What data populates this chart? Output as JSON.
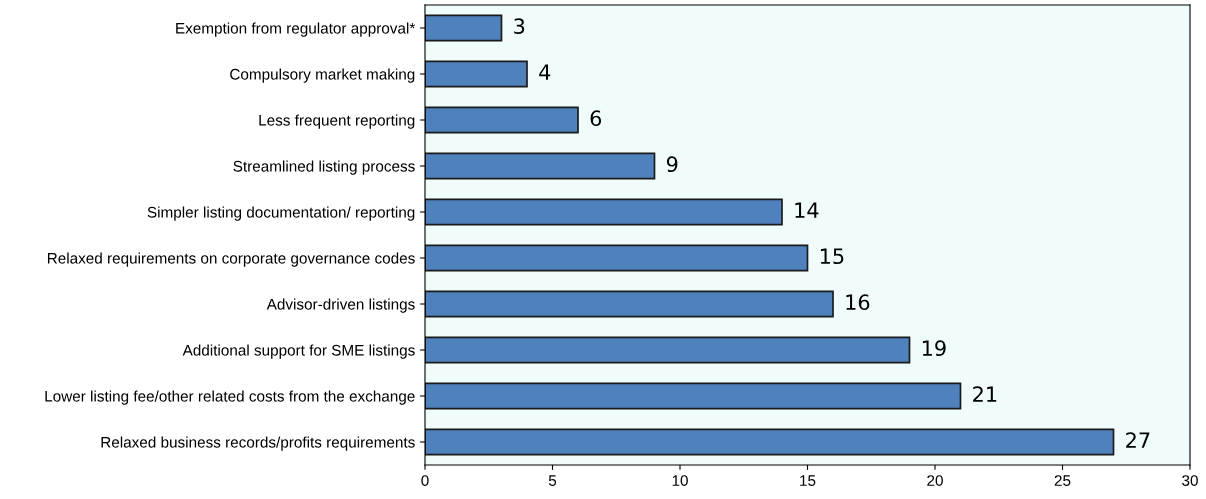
{
  "chart_data": {
    "type": "bar",
    "orientation": "horizontal",
    "categories": [
      "Exemption from regulator approval*",
      "Compulsory market making",
      "Less frequent reporting",
      "Streamlined listing process",
      "Simpler listing documentation/ reporting",
      "Relaxed requirements on corporate governance codes",
      "Advisor-driven listings",
      "Additional support for SME listings",
      "Lower listing fee/other related costs from the exchange",
      "Relaxed business records/profits requirements"
    ],
    "values": [
      3,
      4,
      6,
      9,
      14,
      15,
      16,
      19,
      21,
      27
    ],
    "color": "#4f81bd",
    "xlim": [
      0,
      30
    ],
    "xticks": [
      0,
      5,
      10,
      15,
      20,
      25,
      30
    ],
    "data_labels": true,
    "grid": false,
    "legend": false
  }
}
